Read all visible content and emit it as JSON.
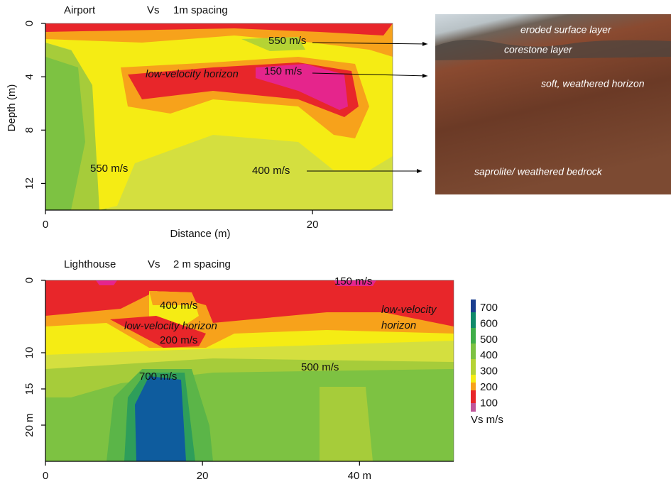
{
  "top_panel": {
    "site": "Airport",
    "vs": "Vs",
    "spacing": "1m spacing",
    "y_label": "Depth (m)",
    "x_label": "Distance (m)",
    "ylim": [
      0,
      14
    ],
    "yticks": [
      0,
      4,
      8,
      12
    ],
    "xlim": [
      0,
      26
    ],
    "xticks": [
      0,
      20
    ],
    "annotations": [
      "550 m/s",
      "low-velocity horizon",
      "150 m/s",
      "550 m/s",
      "400 m/s"
    ]
  },
  "photo": {
    "labels": [
      "eroded surface layer",
      "corestone layer",
      "soft, weathered horizon",
      "saprolite/ weathered bedrock"
    ]
  },
  "bottom_panel": {
    "site": "Lighthouse",
    "vs": "Vs",
    "spacing": "2 m spacing",
    "ylim": [
      0,
      25
    ],
    "yticks": [
      0,
      10,
      15,
      {
        "value": 20,
        "label": "20 m"
      }
    ],
    "xlim": [
      0,
      52
    ],
    "xticks": [
      0,
      20,
      {
        "value": 40,
        "label": "40 m"
      }
    ],
    "annotations": [
      "150 m/s",
      "400 m/s",
      "low-velocity horizon",
      "200 m/s",
      "low-velocity",
      "horizon",
      "700 m/s",
      "500 m/s"
    ]
  },
  "colorbar": {
    "ticks": [
      700,
      600,
      500,
      400,
      300,
      200,
      100
    ],
    "label": "Vs m/s"
  }
}
